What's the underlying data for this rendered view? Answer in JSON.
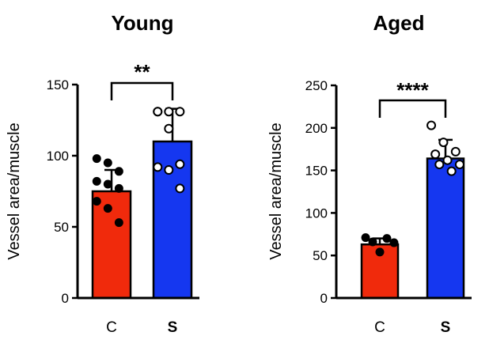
{
  "chart_data": [
    {
      "type": "bar",
      "title": "Young",
      "ylabel": "Vessel area/muscle",
      "xlabel": "",
      "ylim": [
        0,
        150
      ],
      "yticks": [
        "0",
        "50",
        "100",
        "150"
      ],
      "categories": [
        "C",
        "S"
      ],
      "category_bold": [
        false,
        true
      ],
      "values": [
        75,
        110
      ],
      "errors": [
        15,
        23
      ],
      "colors": [
        "#f02a0c",
        "#1537f0"
      ],
      "points": [
        {
          "category": "C",
          "marker": "filled",
          "values": [
            98,
            95,
            89,
            82,
            80,
            77,
            68,
            63,
            53
          ]
        },
        {
          "category": "S",
          "marker": "open",
          "values": [
            131,
            131,
            131,
            131,
            119,
            94,
            92,
            90,
            77
          ]
        }
      ],
      "significance": {
        "label": "**",
        "between": [
          "C",
          "S"
        ]
      }
    },
    {
      "type": "bar",
      "title": "Aged",
      "ylabel": "Vessel area/muscle",
      "xlabel": "",
      "ylim": [
        0,
        250
      ],
      "yticks": [
        "0",
        "50",
        "100",
        "150",
        "200",
        "250"
      ],
      "categories": [
        "C",
        "S"
      ],
      "category_bold": [
        false,
        true
      ],
      "values": [
        63,
        164
      ],
      "errors": [
        7,
        22
      ],
      "colors": [
        "#f02a0c",
        "#1537f0"
      ],
      "points": [
        {
          "category": "C",
          "marker": "filled",
          "values": [
            71,
            70,
            66,
            65,
            54
          ]
        },
        {
          "category": "S",
          "marker": "open",
          "values": [
            203,
            183,
            172,
            169,
            162,
            157,
            157,
            149
          ]
        }
      ],
      "significance": {
        "label": "****",
        "between": [
          "C",
          "S"
        ]
      }
    }
  ]
}
